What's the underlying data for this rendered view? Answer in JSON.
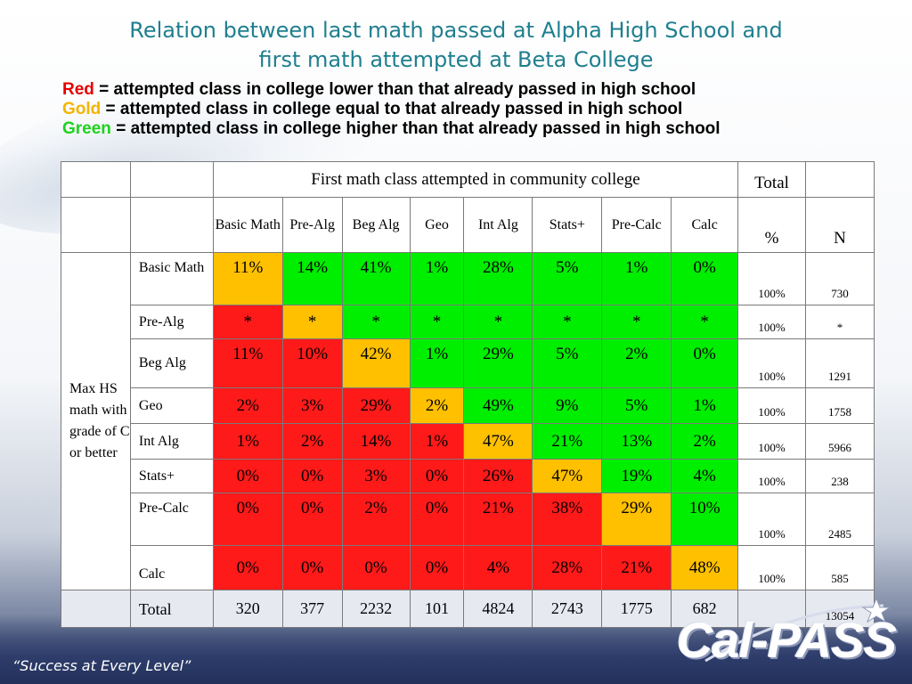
{
  "title": {
    "line1": "Relation between last math passed at Alpha High School and",
    "line2": "first math attempted at Beta College"
  },
  "legend": [
    {
      "color_word": "Red",
      "text": " = attempted class in college lower than that already passed in high school",
      "color": "#e60000"
    },
    {
      "color_word": "Gold",
      "text": " = attempted class in college equal to that already passed in high school",
      "color": "#f5b400"
    },
    {
      "color_word": "Green",
      "text": " = attempted class in college higher than that already passed in high school",
      "color": "#1dd31d"
    }
  ],
  "table": {
    "header_group": "First math class attempted in community college",
    "total_header": "Total",
    "pct_header": "%",
    "n_header": "N",
    "columns": [
      "Basic Math",
      "Pre-Alg",
      "Beg Alg",
      "Geo",
      "Int Alg",
      "Stats+",
      "Pre-Calc",
      "Calc"
    ],
    "row_group_label": "Max HS math with grade of C or better",
    "rows": [
      {
        "label": "Basic Math",
        "cells": [
          "11%",
          "14%",
          "41%",
          "1%",
          "28%",
          "5%",
          "1%",
          "0%"
        ],
        "pct": "100%",
        "n": "730"
      },
      {
        "label": "Pre-Alg",
        "cells": [
          "*",
          "*",
          "*",
          "*",
          "*",
          "*",
          "*",
          "*"
        ],
        "pct": "100%",
        "n": "*"
      },
      {
        "label": "Beg Alg",
        "cells": [
          "11%",
          "10%",
          "42%",
          "1%",
          "29%",
          "5%",
          "2%",
          "0%"
        ],
        "pct": "100%",
        "n": "1291"
      },
      {
        "label": "Geo",
        "cells": [
          "2%",
          "3%",
          "29%",
          "2%",
          "49%",
          "9%",
          "5%",
          "1%"
        ],
        "pct": "100%",
        "n": "1758"
      },
      {
        "label": "Int Alg",
        "cells": [
          "1%",
          "2%",
          "14%",
          "1%",
          "47%",
          "21%",
          "13%",
          "2%"
        ],
        "pct": "100%",
        "n": "5966"
      },
      {
        "label": "Stats+",
        "cells": [
          "0%",
          "0%",
          "3%",
          "0%",
          "26%",
          "47%",
          "19%",
          "4%"
        ],
        "pct": "100%",
        "n": "238"
      },
      {
        "label": "Pre-Calc",
        "cells": [
          "0%",
          "0%",
          "2%",
          "0%",
          "21%",
          "38%",
          "29%",
          "10%"
        ],
        "pct": "100%",
        "n": "2485"
      },
      {
        "label": "Calc",
        "cells": [
          "0%",
          "0%",
          "0%",
          "0%",
          "4%",
          "28%",
          "21%",
          "48%"
        ],
        "pct": "100%",
        "n": "585"
      }
    ],
    "total_row": {
      "label": "Total",
      "cells": [
        "320",
        "377",
        "2232",
        "101",
        "4824",
        "2743",
        "1775",
        "682"
      ],
      "n": "13054"
    }
  },
  "colors": {
    "red": "#ff1a1a",
    "gold": "#ffc000",
    "green": "#00ee00"
  },
  "footer": {
    "tagline": "“Success at Every Level”",
    "logo_text": "Cal-PASS"
  }
}
